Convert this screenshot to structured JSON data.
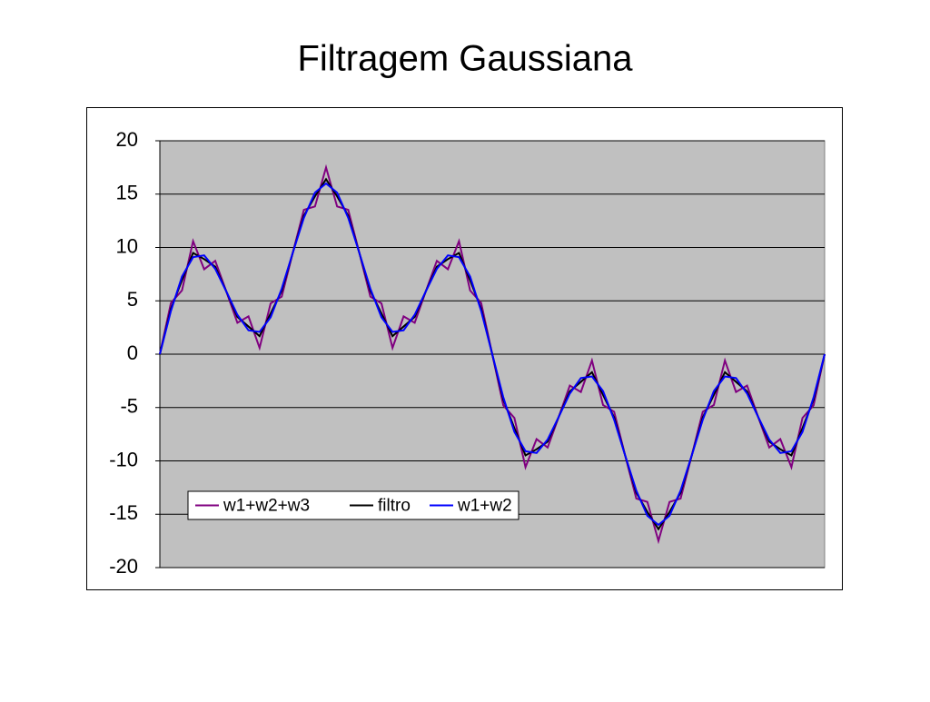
{
  "chart_data": {
    "type": "line",
    "title": "Filtragem Gaussiana",
    "ylim": [
      -20,
      20
    ],
    "yticks": [
      20,
      15,
      10,
      5,
      0,
      -5,
      -10,
      -15,
      -20
    ],
    "grid": true,
    "plot_background": "#c0c0c0",
    "legend_position": "lower left",
    "series": [
      {
        "name": "w1+w2+w3",
        "color": "#800080",
        "values": [
          0,
          4.8,
          5.98,
          10.59,
          7.96,
          8.75,
          5.88,
          2.94,
          3.54,
          0.59,
          4.76,
          5.39,
          9.51,
          13.53,
          13.84,
          17.5,
          13.84,
          13.53,
          9.51,
          5.39,
          4.76,
          0.59,
          3.54,
          2.94,
          5.88,
          8.75,
          7.96,
          10.59,
          5.98,
          4.8,
          0,
          -4.8,
          -5.98,
          -10.59,
          -7.96,
          -8.75,
          -5.88,
          -2.94,
          -3.54,
          -0.59,
          -4.76,
          -5.39,
          -9.51,
          -13.53,
          -13.84,
          -17.5,
          -13.84,
          -13.53,
          -9.51,
          -5.39,
          -4.76,
          -0.59,
          -3.54,
          -2.94,
          -5.88,
          -8.75,
          -7.96,
          -10.59,
          -5.98,
          -4.8,
          0
        ]
      },
      {
        "name": "filtro",
        "color": "#000000",
        "values": [
          0,
          4.25,
          6.93,
          9.49,
          8.91,
          8.2,
          5.88,
          3.49,
          2.59,
          1.69,
          3.81,
          5.94,
          9.51,
          12.98,
          14.79,
          16.4,
          14.79,
          12.98,
          9.51,
          5.94,
          3.81,
          1.69,
          2.59,
          3.49,
          5.88,
          8.2,
          8.91,
          9.49,
          6.93,
          4.25,
          0,
          -4.25,
          -6.93,
          -9.49,
          -8.91,
          -8.2,
          -5.88,
          -3.49,
          -2.59,
          -1.69,
          -3.81,
          -5.94,
          -9.51,
          -12.98,
          -14.79,
          -16.4,
          -14.79,
          -12.98,
          -9.51,
          -5.94,
          -3.81,
          -1.69,
          -2.59,
          -3.49,
          -5.88,
          -8.2,
          -8.91,
          -9.49,
          -6.93,
          -4.25,
          0
        ]
      },
      {
        "name": "w1+w2",
        "color": "#0000ff",
        "values": [
          0,
          4.05,
          7.28,
          9.09,
          9.26,
          8,
          5.88,
          3.69,
          2.24,
          2.09,
          3.46,
          6.14,
          9.51,
          12.78,
          15.14,
          16,
          15.14,
          12.78,
          9.51,
          6.14,
          3.46,
          2.09,
          2.24,
          3.69,
          5.88,
          8,
          9.26,
          9.09,
          7.28,
          4.05,
          0,
          -4.05,
          -7.28,
          -9.09,
          -9.26,
          -8,
          -5.88,
          -3.69,
          -2.24,
          -2.09,
          -3.46,
          -6.14,
          -9.51,
          -12.78,
          -15.14,
          -16,
          -15.14,
          -12.78,
          -9.51,
          -6.14,
          -3.46,
          -2.09,
          -2.24,
          -3.69,
          -5.88,
          -8,
          -9.26,
          -9.09,
          -7.28,
          -4.05,
          0
        ]
      }
    ]
  }
}
